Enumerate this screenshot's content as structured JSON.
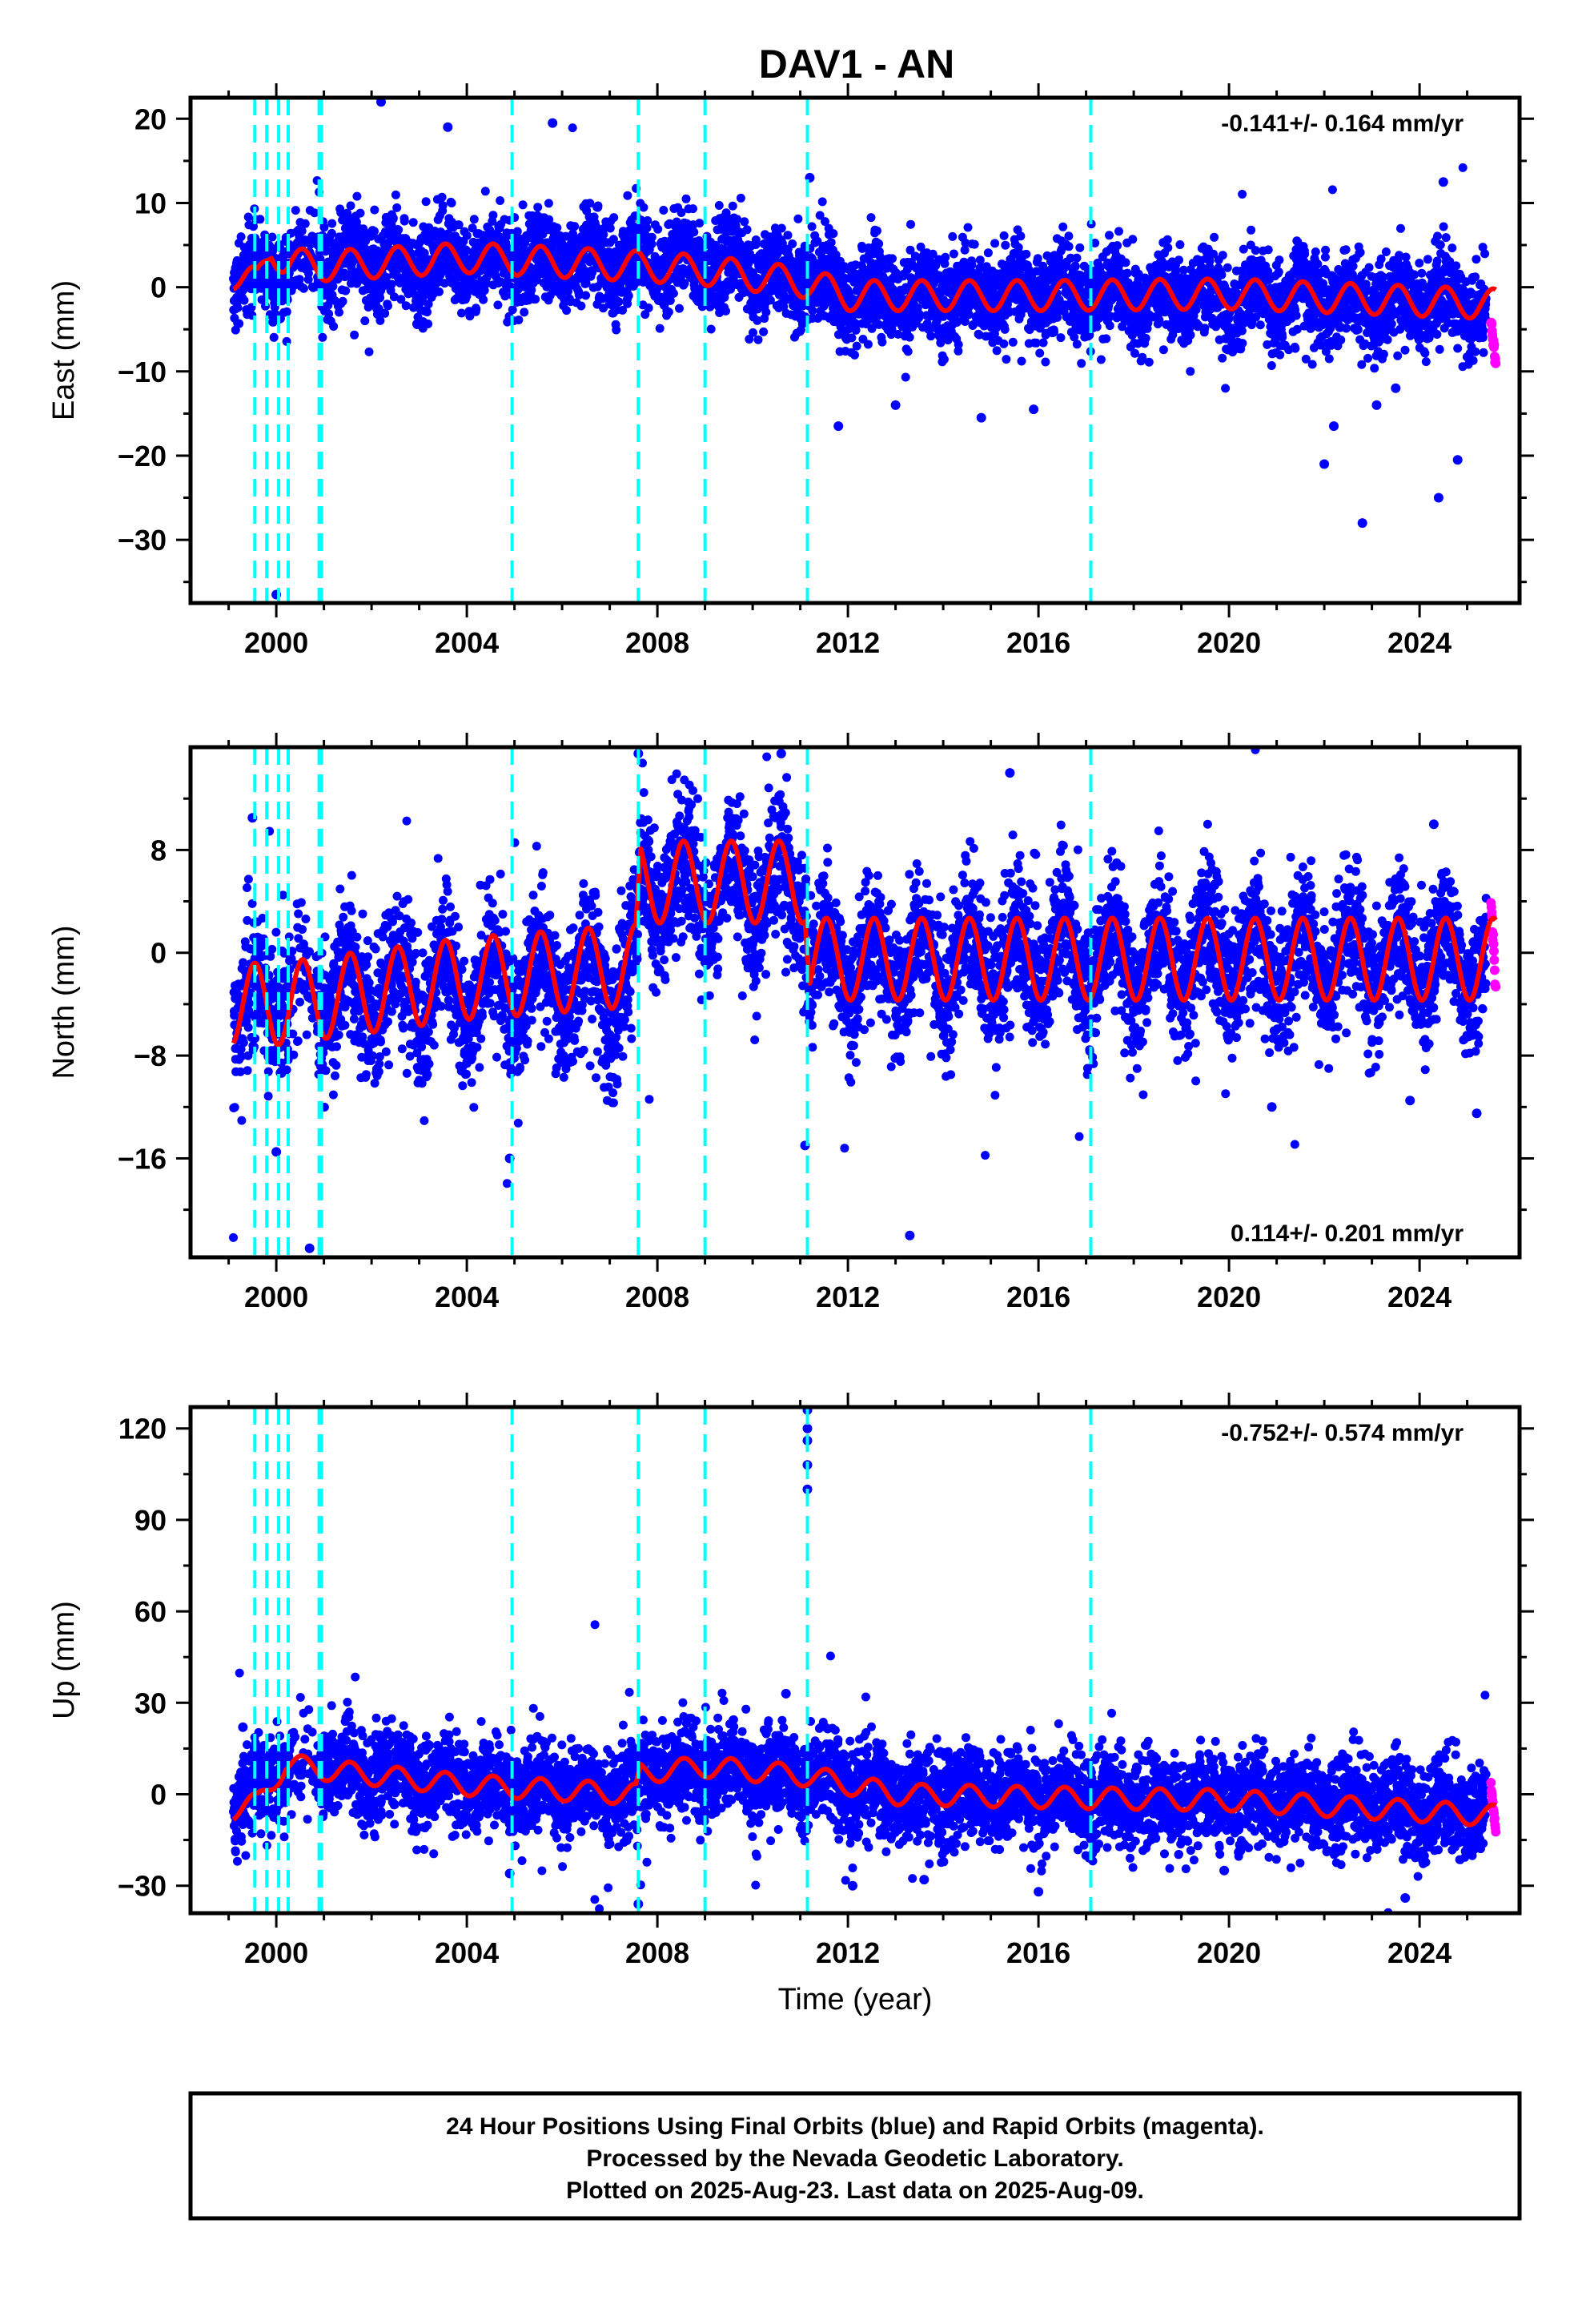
{
  "title": "DAV1 - AN",
  "colors": {
    "final_orbit_points": "#0000ff",
    "rapid_orbit_points": "#ff00ff",
    "model_line": "#ff0000",
    "event_lines": "#00ffff",
    "frame": "#000000"
  },
  "chart_data": [
    {
      "type": "scatter",
      "panel": "east",
      "ylabel": "East (mm)",
      "xlabel": "",
      "xlim": [
        1998.2,
        2026.1
      ],
      "ylim": [
        -37.5,
        22.5
      ],
      "xticks": [
        2000,
        2004,
        2008,
        2012,
        2016,
        2020,
        2024
      ],
      "yticks": [
        -30,
        -20,
        -10,
        0,
        10,
        20
      ],
      "rate_text": "-0.141+/- 0.164 mm/yr",
      "rate_position": "top-right",
      "series": [
        {
          "kind": "final_orbits",
          "center": [
            [
              1999.1,
              1
            ],
            [
              2000.9,
              3
            ],
            [
              2004,
              3
            ],
            [
              2009,
              3
            ],
            [
              2011.1,
              1
            ],
            [
              2012,
              -1
            ],
            [
              2016,
              -1
            ],
            [
              2020,
              -1
            ],
            [
              2025.4,
              -2
            ]
          ],
          "spread": 2.6,
          "outliers": [
            [
              2000.0,
              -36.5
            ],
            [
              2002.2,
              22
            ],
            [
              2003.6,
              19
            ],
            [
              2005.8,
              19.5
            ],
            [
              2011.2,
              13
            ],
            [
              2011.8,
              -16.5
            ],
            [
              2013.0,
              -14
            ],
            [
              2014.8,
              -15.5
            ],
            [
              2015.9,
              -14.5
            ],
            [
              2022.0,
              -21
            ],
            [
              2022.2,
              -16.5
            ],
            [
              2022.8,
              -28
            ],
            [
              2023.1,
              -14
            ],
            [
              2024.4,
              -25
            ],
            [
              2024.8,
              -20.5
            ],
            [
              2024.5,
              12.5
            ],
            [
              2023.5,
              -12
            ]
          ]
        },
        {
          "kind": "rapid_orbits",
          "x": [
            2025.5,
            2025.6
          ],
          "y": [
            -4,
            -9
          ]
        },
        {
          "kind": "model",
          "amplitude": 1.8,
          "knots": [
            [
              1999.1,
              1.5
            ],
            [
              1999.6,
              0.5
            ],
            [
              1999.9,
              4.5
            ],
            [
              2000.2,
              3
            ],
            [
              2000.9,
              2.5
            ],
            [
              2004,
              3.5
            ],
            [
              2007.6,
              2.5
            ],
            [
              2009.0,
              2
            ],
            [
              2011.15,
              0.5
            ],
            [
              2012,
              -1
            ],
            [
              2016,
              -1
            ],
            [
              2020,
              -0.8
            ],
            [
              2025.6,
              -2
            ]
          ]
        },
        {
          "kind": "event_lines",
          "x": [
            1999.55,
            1999.8,
            2000.05,
            2000.25,
            2000.9,
            2000.95,
            2004.95,
            2007.6,
            2009.0,
            2011.15,
            2017.1
          ]
        }
      ]
    },
    {
      "type": "scatter",
      "panel": "north",
      "ylabel": "North (mm)",
      "xlabel": "",
      "xlim": [
        1998.2,
        2026.1
      ],
      "ylim": [
        -23.7,
        16.0
      ],
      "xticks": [
        2000,
        2004,
        2008,
        2012,
        2016,
        2020,
        2024
      ],
      "yticks": [
        -16,
        -8,
        0,
        8
      ],
      "rate_text": "0.114+/- 0.201 mm/yr",
      "rate_position": "bottom-right",
      "series": [
        {
          "kind": "final_orbits",
          "center": [
            [
              1999.1,
              -4
            ],
            [
              2000.5,
              -3
            ],
            [
              2004,
              -3
            ],
            [
              2007.55,
              -2
            ],
            [
              2007.65,
              5.5
            ],
            [
              2009,
              5
            ],
            [
              2011.1,
              5
            ],
            [
              2011.2,
              -1
            ],
            [
              2016,
              -0.5
            ],
            [
              2020,
              -0.5
            ],
            [
              2025.4,
              -0.5
            ]
          ],
          "spread": 2.6,
          "outliers": [
            [
              1999.5,
              10.5
            ],
            [
              2000.0,
              -15.5
            ],
            [
              2000.7,
              -23
            ],
            [
              2004.9,
              -16
            ],
            [
              2007.6,
              15.5
            ],
            [
              2010.6,
              15.5
            ],
            [
              2011.1,
              -15
            ],
            [
              2013.3,
              -22
            ],
            [
              2015.4,
              14
            ],
            [
              2024.3,
              10
            ],
            [
              2025.2,
              -12.5
            ],
            [
              2023.8,
              -11.5
            ],
            [
              2020.9,
              -12
            ]
          ]
        },
        {
          "kind": "rapid_orbits",
          "x": [
            2025.5,
            2025.6
          ],
          "y": [
            4,
            -3
          ]
        },
        {
          "kind": "model",
          "amplitude": 3.2,
          "knots": [
            [
              1999.1,
              -4
            ],
            [
              2000.0,
              -4
            ],
            [
              2004,
              -2
            ],
            [
              2007.55,
              -1
            ],
            [
              2007.65,
              5.5
            ],
            [
              2009,
              5.5
            ],
            [
              2011.1,
              5.5
            ],
            [
              2011.2,
              -0.5
            ],
            [
              2016,
              -0.5
            ],
            [
              2025.6,
              -0.5
            ]
          ]
        },
        {
          "kind": "event_lines",
          "x": [
            1999.55,
            1999.8,
            2000.05,
            2000.25,
            2000.9,
            2000.95,
            2004.95,
            2007.6,
            2009.0,
            2011.15,
            2017.1
          ]
        }
      ]
    },
    {
      "type": "scatter",
      "panel": "up",
      "ylabel": "Up (mm)",
      "xlabel": "Time (year)",
      "xlim": [
        1998.2,
        2026.1
      ],
      "ylim": [
        -39,
        127
      ],
      "xticks": [
        2000,
        2004,
        2008,
        2012,
        2016,
        2020,
        2024
      ],
      "yticks": [
        -30,
        0,
        30,
        60,
        90,
        120
      ],
      "rate_text": "-0.752+/- 0.574 mm/yr",
      "rate_position": "top-right",
      "series": [
        {
          "kind": "final_orbits",
          "center": [
            [
              1999.1,
              -4
            ],
            [
              2000.1,
              8
            ],
            [
              2001,
              8
            ],
            [
              2004,
              3
            ],
            [
              2007.55,
              0
            ],
            [
              2007.65,
              6
            ],
            [
              2009,
              8
            ],
            [
              2011.1,
              6
            ],
            [
              2013,
              0
            ],
            [
              2016,
              -1
            ],
            [
              2020,
              -2
            ],
            [
              2025.4,
              -6
            ]
          ],
          "spread": 7.5,
          "outliers": [
            [
              2011.15,
              126
            ],
            [
              2011.15,
              120
            ],
            [
              2011.15,
              116
            ],
            [
              2011.15,
              108
            ],
            [
              2011.15,
              100
            ],
            [
              2007.6,
              -36
            ],
            [
              2004.9,
              -26
            ],
            [
              2010.7,
              33
            ],
            [
              2016.0,
              -32
            ],
            [
              2023.7,
              -34
            ],
            [
              2012.1,
              -30
            ],
            [
              2013.6,
              -28
            ],
            [
              2019.9,
              -25
            ],
            [
              1999.3,
              22
            ],
            [
              2001.5,
              26
            ]
          ]
        },
        {
          "kind": "rapid_orbits",
          "x": [
            2025.5,
            2025.6
          ],
          "y": [
            3,
            -12
          ]
        },
        {
          "kind": "model",
          "amplitude": 3.5,
          "knots": [
            [
              1999.1,
              -5
            ],
            [
              1999.6,
              -3
            ],
            [
              2000.2,
              10
            ],
            [
              2001,
              8
            ],
            [
              2004,
              3
            ],
            [
              2007.55,
              0
            ],
            [
              2007.65,
              7
            ],
            [
              2009,
              9
            ],
            [
              2011.15,
              6
            ],
            [
              2013,
              0
            ],
            [
              2016,
              -1
            ],
            [
              2020,
              -2
            ],
            [
              2025.6,
              -7
            ]
          ]
        },
        {
          "kind": "event_lines",
          "x": [
            1999.55,
            1999.8,
            2000.05,
            2000.25,
            2000.9,
            2000.95,
            2004.95,
            2007.6,
            2009.0,
            2011.15,
            2017.1
          ]
        }
      ]
    }
  ],
  "footer": {
    "line1": "24 Hour Positions Using Final Orbits (blue) and Rapid Orbits (magenta).",
    "line2": "Processed by the Nevada Geodetic Laboratory.",
    "line3": "Plotted on 2025-Aug-23. Last data on 2025-Aug-09."
  }
}
